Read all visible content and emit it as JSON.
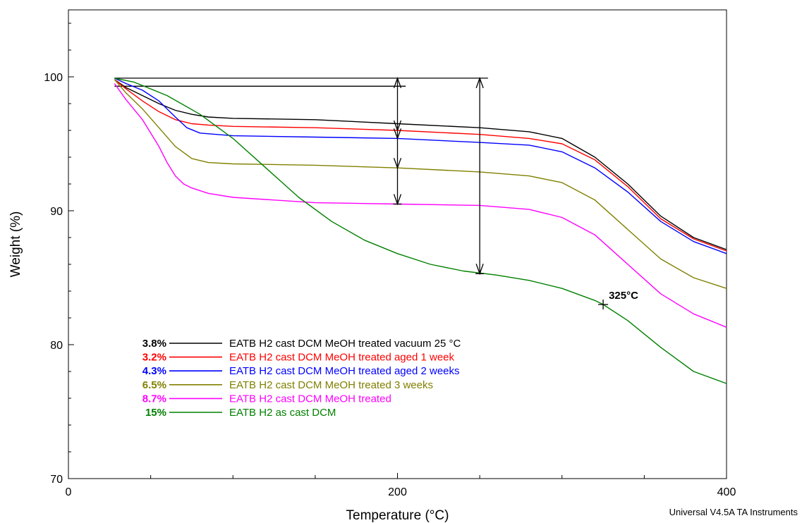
{
  "chart_data": {
    "type": "line",
    "title": "",
    "xlabel": "Temperature (°C)",
    "ylabel": "Weight (%)",
    "xlim": [
      0,
      400
    ],
    "ylim": [
      70,
      105
    ],
    "x_ticks": [
      0,
      200,
      400
    ],
    "x_minor_ticks": [
      50,
      100,
      150,
      250,
      300,
      350
    ],
    "y_ticks": [
      70,
      80,
      90,
      100
    ],
    "grid": false,
    "legend_placement": "lower-left",
    "series": [
      {
        "name": "EATB H2 cast DCM MeOH treated vacuum 25 °C",
        "loss_label": "3.8%",
        "color": "#000000",
        "x": [
          28,
          35,
          45,
          55,
          65,
          75,
          85,
          100,
          150,
          200,
          250,
          280,
          300,
          320,
          340,
          360,
          380,
          400
        ],
        "y": [
          99.8,
          99.2,
          98.6,
          98.0,
          97.5,
          97.2,
          97.0,
          96.9,
          96.8,
          96.5,
          96.2,
          95.9,
          95.4,
          94.0,
          92.0,
          89.6,
          88.0,
          87.1
        ]
      },
      {
        "name": "EATB H2 cast DCM MeOH treated aged 1 week",
        "loss_label": "3.2%",
        "color": "#ff0000",
        "x": [
          28,
          35,
          45,
          55,
          65,
          75,
          85,
          100,
          150,
          200,
          250,
          280,
          300,
          320,
          340,
          360,
          380,
          400
        ],
        "y": [
          99.8,
          99.1,
          98.2,
          97.4,
          96.8,
          96.5,
          96.4,
          96.3,
          96.2,
          96.0,
          95.7,
          95.4,
          95.0,
          93.8,
          91.8,
          89.4,
          87.9,
          87.0
        ]
      },
      {
        "name": "EATB H2 cast DCM MeOH treated aged 2 weeks",
        "loss_label": "4.3%",
        "color": "#0000ff",
        "x": [
          28,
          35,
          45,
          55,
          65,
          72,
          80,
          90,
          100,
          150,
          200,
          250,
          280,
          300,
          320,
          340,
          360,
          380,
          400
        ],
        "y": [
          99.9,
          99.5,
          99.0,
          98.2,
          97.0,
          96.2,
          95.8,
          95.7,
          95.6,
          95.5,
          95.4,
          95.1,
          94.9,
          94.4,
          93.2,
          91.4,
          89.2,
          87.7,
          86.8
        ]
      },
      {
        "name": "EATB H2 cast DCM MeOH treated 3 weeks",
        "loss_label": "6.5%",
        "color": "#808000",
        "x": [
          28,
          35,
          45,
          55,
          65,
          75,
          85,
          100,
          150,
          200,
          250,
          280,
          300,
          320,
          340,
          360,
          380,
          400
        ],
        "y": [
          99.8,
          98.8,
          97.6,
          96.2,
          94.8,
          93.9,
          93.6,
          93.5,
          93.4,
          93.2,
          92.9,
          92.6,
          92.1,
          90.8,
          88.6,
          86.4,
          85.0,
          84.2
        ]
      },
      {
        "name": "EATB H2 cast DCM MeOH treated",
        "loss_label": "8.7%",
        "color": "#ff00ff",
        "x": [
          28,
          35,
          45,
          55,
          60,
          65,
          70,
          75,
          85,
          100,
          150,
          200,
          250,
          280,
          300,
          320,
          340,
          360,
          380,
          400
        ],
        "y": [
          99.5,
          98.3,
          96.8,
          94.8,
          93.6,
          92.6,
          92.0,
          91.7,
          91.3,
          91.0,
          90.6,
          90.5,
          90.4,
          90.1,
          89.5,
          88.2,
          86.0,
          83.8,
          82.3,
          81.3
        ]
      },
      {
        "name": "EATB H2 as cast DCM",
        "loss_label": "15%",
        "color": "#008000",
        "x": [
          28,
          40,
          60,
          80,
          100,
          120,
          140,
          160,
          180,
          200,
          220,
          240,
          260,
          280,
          300,
          320,
          325,
          340,
          360,
          380,
          400
        ],
        "y": [
          99.9,
          99.6,
          98.6,
          97.2,
          95.4,
          93.2,
          91.0,
          89.2,
          87.8,
          86.8,
          86.0,
          85.5,
          85.2,
          84.8,
          84.2,
          83.3,
          83.0,
          81.8,
          79.8,
          78.0,
          77.1
        ]
      }
    ],
    "annotations": [
      {
        "type": "point_marker",
        "x": 325,
        "y": 83.0,
        "label": "325°C"
      }
    ],
    "measurement_arrows": [
      {
        "x": 200,
        "y_from": 99.9,
        "y_to": 90.5
      },
      {
        "x": 250,
        "y_from": 99.9,
        "y_to": 85.3
      }
    ],
    "reference_lines": [
      {
        "y": 99.9,
        "x_from": 28,
        "x_to": 255
      },
      {
        "y": 99.3,
        "x_from": 28,
        "x_to": 205
      }
    ],
    "credit": "Universal V4.5A TA Instruments"
  }
}
